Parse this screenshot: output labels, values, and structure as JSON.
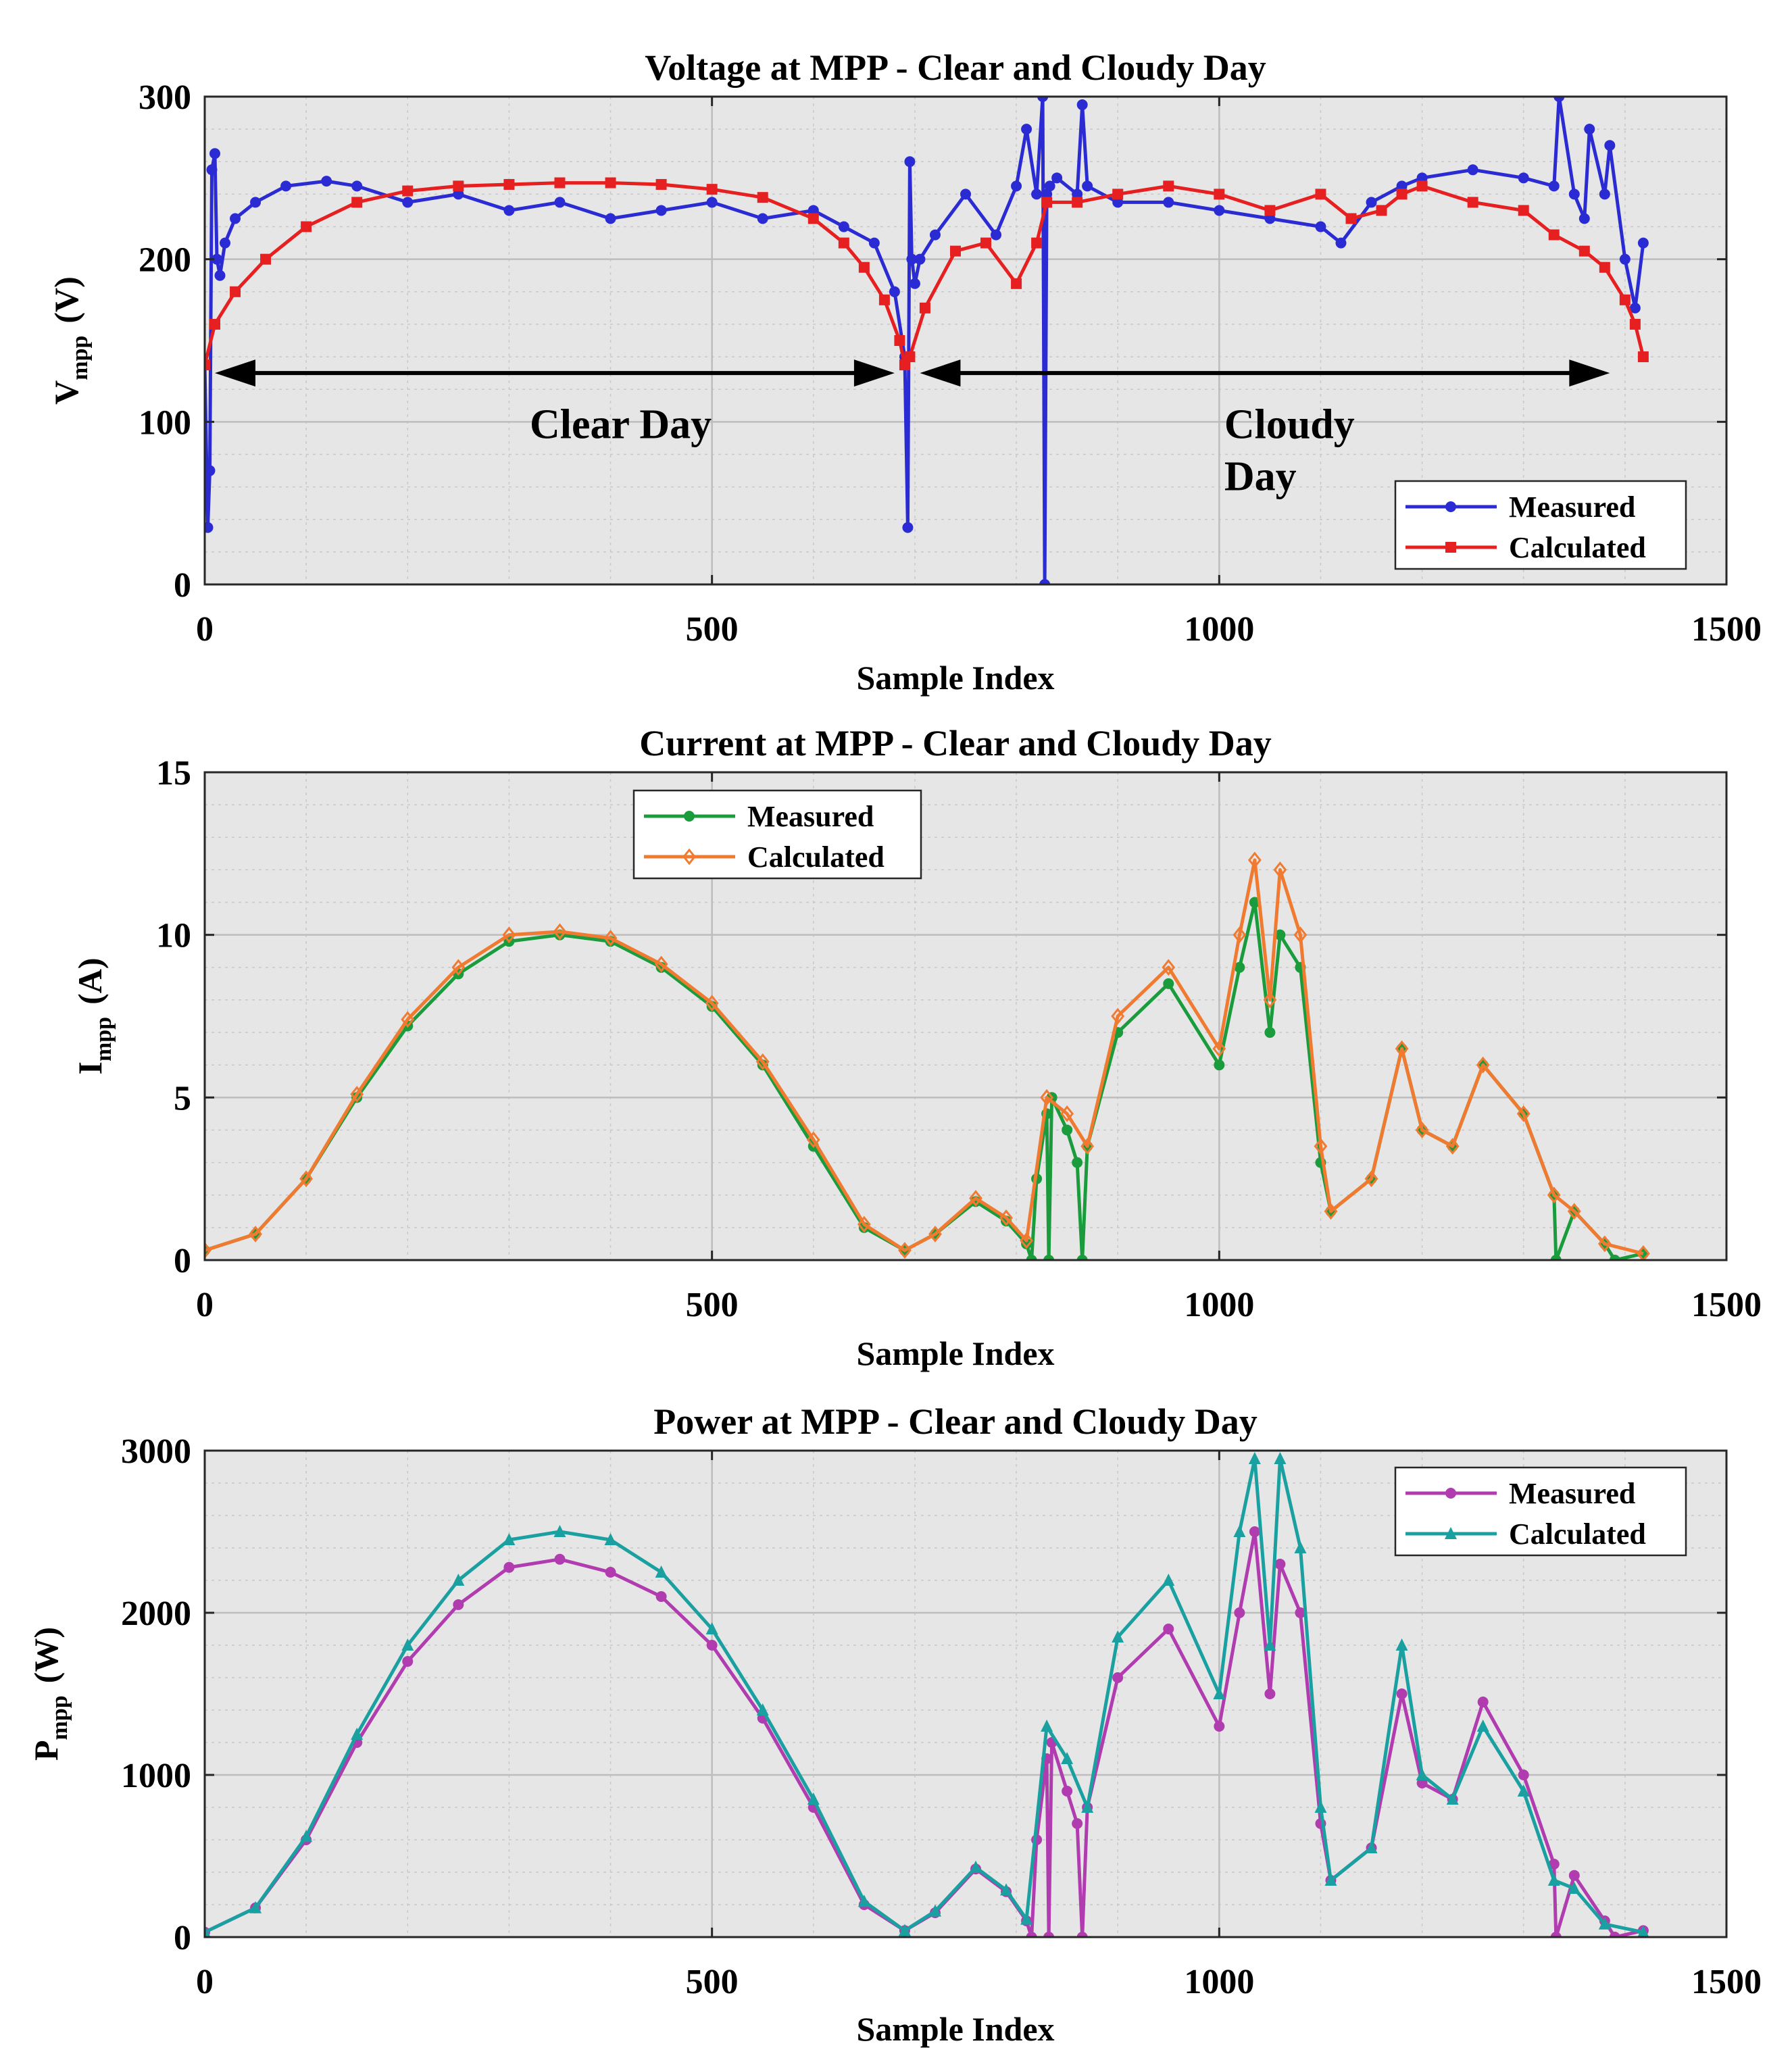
{
  "chart_data": [
    {
      "type": "line",
      "title": "Voltage at MPP - Clear and Cloudy Day",
      "xlabel": "Sample Index",
      "ylabel": "V",
      "ylabel_sub": "mpp",
      "ylabel_unit": "(V)",
      "xlim": [
        0,
        1500
      ],
      "ylim": [
        0,
        300
      ],
      "xticks": [
        "0",
        "500",
        "1000",
        "1500"
      ],
      "yticks": [
        "0",
        "100",
        "200",
        "300"
      ],
      "grid": true,
      "legend": "bottom-right",
      "series": [
        {
          "name": "Measured",
          "color": "#2b2bd4",
          "marker": "circle",
          "x": [
            0,
            3,
            5,
            7,
            10,
            12,
            15,
            20,
            30,
            50,
            80,
            120,
            150,
            200,
            250,
            300,
            350,
            400,
            450,
            500,
            550,
            600,
            630,
            660,
            680,
            690,
            693,
            695,
            697,
            700,
            705,
            720,
            750,
            780,
            800,
            810,
            820,
            826,
            828,
            830,
            833,
            840,
            860,
            865,
            870,
            900,
            950,
            1000,
            1050,
            1100,
            1120,
            1150,
            1180,
            1200,
            1250,
            1300,
            1330,
            1335,
            1350,
            1360,
            1365,
            1380,
            1385,
            1400,
            1410,
            1418
          ],
          "y": [
            135,
            35,
            70,
            255,
            265,
            200,
            190,
            210,
            225,
            235,
            245,
            248,
            245,
            235,
            240,
            230,
            235,
            225,
            230,
            235,
            225,
            230,
            220,
            210,
            180,
            140,
            35,
            260,
            200,
            185,
            200,
            215,
            240,
            215,
            245,
            280,
            240,
            300,
            0,
            240,
            245,
            250,
            240,
            295,
            245,
            235,
            235,
            230,
            225,
            220,
            210,
            235,
            245,
            250,
            255,
            250,
            245,
            300,
            240,
            225,
            280,
            240,
            270,
            200,
            170,
            210
          ]
        },
        {
          "name": "Calculated",
          "color": "#e62020",
          "marker": "square",
          "x": [
            0,
            10,
            30,
            60,
            100,
            150,
            200,
            250,
            300,
            350,
            400,
            450,
            500,
            550,
            600,
            630,
            650,
            670,
            685,
            690,
            695,
            710,
            740,
            770,
            800,
            820,
            830,
            860,
            900,
            950,
            1000,
            1050,
            1100,
            1130,
            1160,
            1180,
            1200,
            1250,
            1300,
            1330,
            1360,
            1380,
            1400,
            1410,
            1418
          ],
          "y": [
            135,
            160,
            180,
            200,
            220,
            235,
            242,
            245,
            246,
            247,
            247,
            246,
            243,
            238,
            225,
            210,
            195,
            175,
            150,
            135,
            140,
            170,
            205,
            210,
            185,
            210,
            235,
            235,
            240,
            245,
            240,
            230,
            240,
            225,
            230,
            240,
            245,
            235,
            230,
            215,
            205,
            195,
            175,
            160,
            140
          ]
        }
      ],
      "annotations": [
        {
          "text": "Clear Day"
        },
        {
          "text": "Cloudy"
        },
        {
          "text": "Day"
        }
      ]
    },
    {
      "type": "line",
      "title": "Current at MPP - Clear and Cloudy Day",
      "xlabel": "Sample Index",
      "ylabel": "I",
      "ylabel_sub": "mpp",
      "ylabel_unit": "(A)",
      "xlim": [
        0,
        1500
      ],
      "ylim": [
        0,
        15
      ],
      "xticks": [
        "0",
        "500",
        "1000",
        "1500"
      ],
      "yticks": [
        "0",
        "5",
        "10",
        "15"
      ],
      "grid": true,
      "legend": "top-left",
      "series": [
        {
          "name": "Measured",
          "color": "#1a9c3c",
          "marker": "circle",
          "x": [
            0,
            50,
            100,
            150,
            200,
            250,
            300,
            350,
            400,
            450,
            500,
            550,
            600,
            650,
            690,
            720,
            760,
            790,
            810,
            815,
            820,
            830,
            832,
            835,
            850,
            860,
            865,
            870,
            900,
            950,
            1000,
            1020,
            1035,
            1050,
            1060,
            1080,
            1100,
            1110,
            1150,
            1180,
            1200,
            1230,
            1260,
            1300,
            1330,
            1332,
            1350,
            1380,
            1390,
            1418
          ],
          "y": [
            0.3,
            0.8,
            2.5,
            5.0,
            7.2,
            8.8,
            9.8,
            10.0,
            9.8,
            9.0,
            7.8,
            6.0,
            3.5,
            1.0,
            0.3,
            0.8,
            1.8,
            1.2,
            0.5,
            0,
            2.5,
            4.5,
            0,
            5.0,
            4.0,
            3.0,
            0,
            3.5,
            7.0,
            8.5,
            6.0,
            9.0,
            11.0,
            7.0,
            10.0,
            9.0,
            3.0,
            1.5,
            2.5,
            6.5,
            4.0,
            3.5,
            6.0,
            4.5,
            2.0,
            0,
            1.5,
            0.5,
            0,
            0.2
          ]
        },
        {
          "name": "Calculated",
          "color": "#f07a30",
          "marker": "diamond",
          "x": [
            0,
            50,
            100,
            150,
            200,
            250,
            300,
            350,
            400,
            450,
            500,
            550,
            600,
            650,
            690,
            720,
            760,
            790,
            810,
            830,
            850,
            870,
            900,
            950,
            1000,
            1020,
            1035,
            1050,
            1060,
            1080,
            1100,
            1110,
            1150,
            1180,
            1200,
            1230,
            1260,
            1300,
            1330,
            1350,
            1380,
            1418
          ],
          "y": [
            0.3,
            0.8,
            2.5,
            5.1,
            7.4,
            9.0,
            10.0,
            10.1,
            9.9,
            9.1,
            7.9,
            6.1,
            3.7,
            1.1,
            0.3,
            0.8,
            1.9,
            1.3,
            0.6,
            5.0,
            4.5,
            3.5,
            7.5,
            9.0,
            6.5,
            10.0,
            12.3,
            8.0,
            12.0,
            10.0,
            3.5,
            1.5,
            2.5,
            6.5,
            4.0,
            3.5,
            6.0,
            4.5,
            2.0,
            1.5,
            0.5,
            0.2
          ]
        }
      ]
    },
    {
      "type": "line",
      "title": "Power at MPP - Clear and Cloudy Day",
      "xlabel": "Sample Index",
      "ylabel": "P",
      "ylabel_sub": "mpp",
      "ylabel_unit": "(W)",
      "xlim": [
        0,
        1500
      ],
      "ylim": [
        0,
        3000
      ],
      "xticks": [
        "0",
        "500",
        "1000",
        "1500"
      ],
      "yticks": [
        "0",
        "1000",
        "2000",
        "3000"
      ],
      "grid": true,
      "legend": "top-right",
      "series": [
        {
          "name": "Measured",
          "color": "#b03cb0",
          "marker": "circle",
          "x": [
            0,
            50,
            100,
            150,
            200,
            250,
            300,
            350,
            400,
            450,
            500,
            550,
            600,
            650,
            690,
            720,
            760,
            790,
            810,
            815,
            820,
            830,
            832,
            835,
            850,
            860,
            865,
            870,
            900,
            950,
            1000,
            1020,
            1035,
            1050,
            1060,
            1080,
            1100,
            1110,
            1150,
            1180,
            1200,
            1230,
            1260,
            1300,
            1330,
            1332,
            1350,
            1380,
            1390,
            1418
          ],
          "y": [
            30,
            180,
            600,
            1200,
            1700,
            2050,
            2280,
            2330,
            2250,
            2100,
            1800,
            1350,
            800,
            200,
            40,
            150,
            420,
            280,
            100,
            0,
            600,
            1100,
            0,
            1200,
            900,
            700,
            0,
            800,
            1600,
            1900,
            1300,
            2000,
            2500,
            1500,
            2300,
            2000,
            700,
            350,
            550,
            1500,
            950,
            850,
            1450,
            1000,
            450,
            0,
            380,
            100,
            0,
            40
          ]
        },
        {
          "name": "Calculated",
          "color": "#1aa0a0",
          "marker": "triangle",
          "x": [
            0,
            50,
            100,
            150,
            200,
            250,
            300,
            350,
            400,
            450,
            500,
            550,
            600,
            650,
            690,
            720,
            760,
            790,
            810,
            830,
            850,
            870,
            900,
            950,
            1000,
            1020,
            1035,
            1050,
            1060,
            1080,
            1100,
            1110,
            1150,
            1180,
            1200,
            1230,
            1260,
            1300,
            1330,
            1350,
            1380,
            1418
          ],
          "y": [
            30,
            180,
            620,
            1250,
            1800,
            2200,
            2450,
            2500,
            2450,
            2250,
            1900,
            1400,
            850,
            220,
            40,
            160,
            430,
            290,
            110,
            1300,
            1100,
            800,
            1850,
            2200,
            1500,
            2500,
            2950,
            1800,
            2950,
            2400,
            800,
            350,
            550,
            1800,
            1000,
            850,
            1300,
            900,
            350,
            300,
            80,
            30
          ]
        }
      ]
    }
  ]
}
